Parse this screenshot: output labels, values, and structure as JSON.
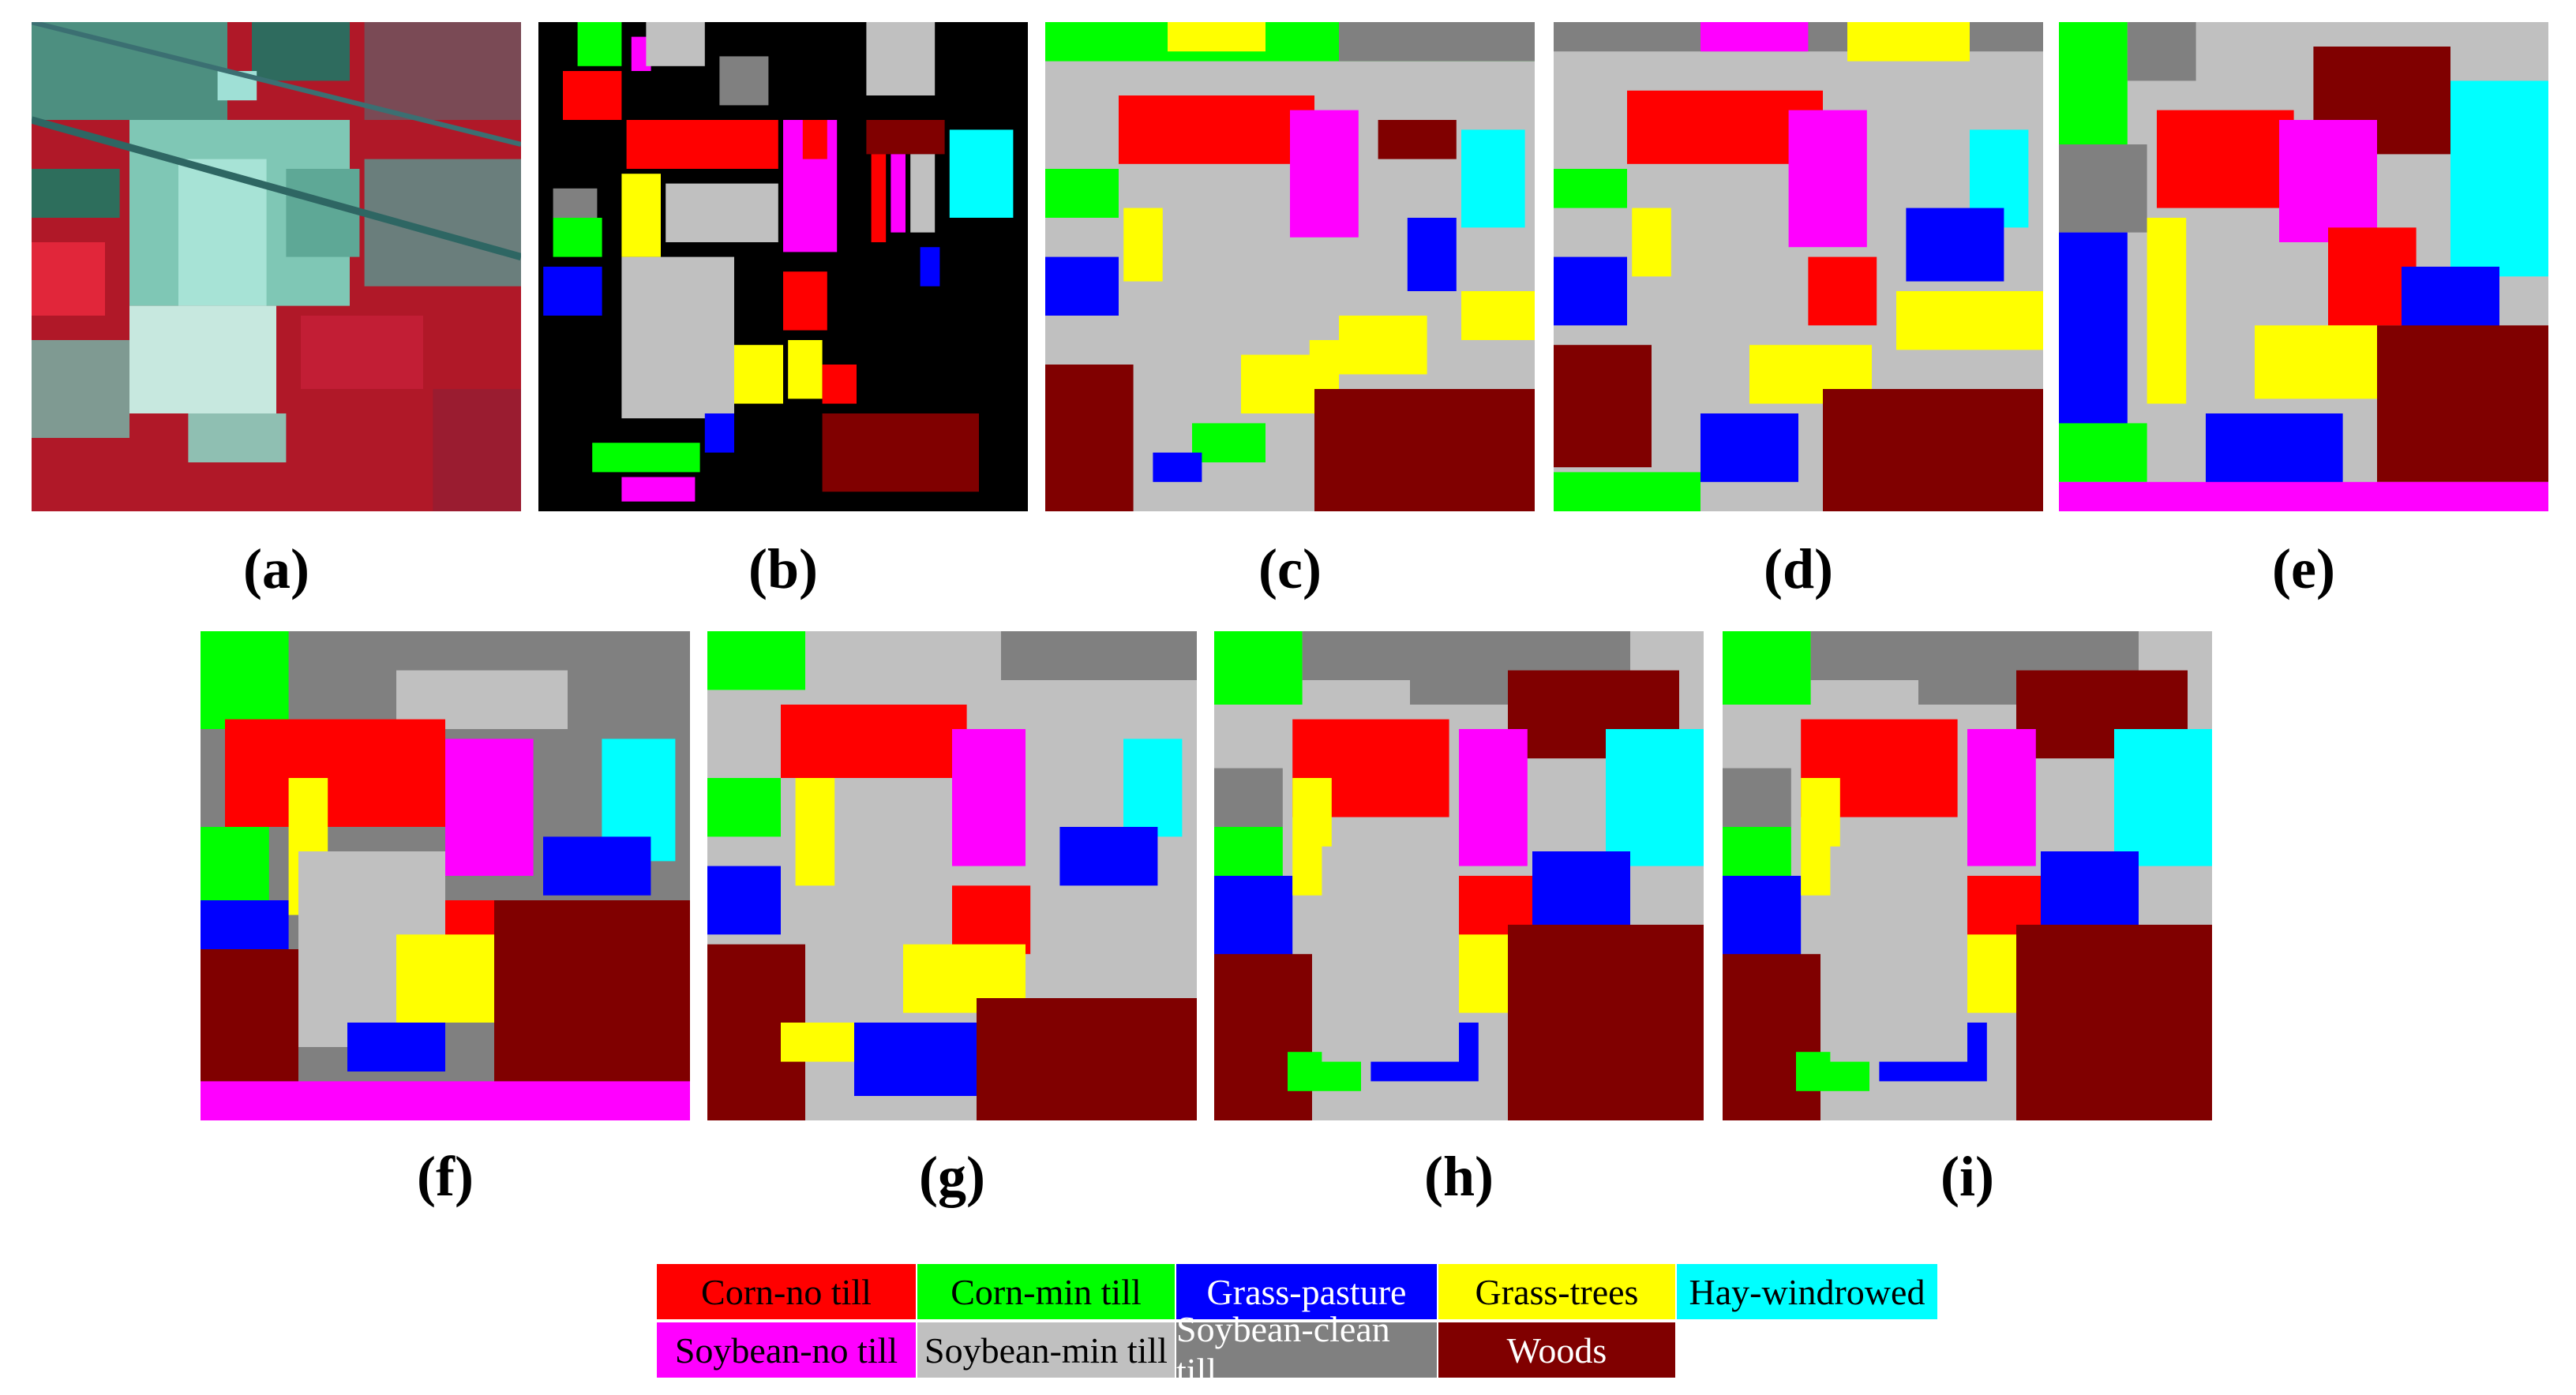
{
  "figure": {
    "panels": [
      {
        "id": "a",
        "label": "(a)",
        "kind": "false-color-composite"
      },
      {
        "id": "b",
        "label": "(b)",
        "kind": "ground-truth-map"
      },
      {
        "id": "c",
        "label": "(c)",
        "kind": "classification-map"
      },
      {
        "id": "d",
        "label": "(d)",
        "kind": "classification-map"
      },
      {
        "id": "e",
        "label": "(e)",
        "kind": "classification-map"
      },
      {
        "id": "f",
        "label": "(f)",
        "kind": "classification-map"
      },
      {
        "id": "g",
        "label": "(g)",
        "kind": "classification-map"
      },
      {
        "id": "h",
        "label": "(h)",
        "kind": "classification-map"
      },
      {
        "id": "i",
        "label": "(i)",
        "kind": "classification-map"
      }
    ]
  },
  "legend": {
    "items": [
      {
        "label": "Corn-no till",
        "color": "#ff0000",
        "text_color": "#000000"
      },
      {
        "label": "Corn-min till",
        "color": "#00ff00",
        "text_color": "#000000"
      },
      {
        "label": "Grass-pasture",
        "color": "#0000ff",
        "text_color": "#ffffff"
      },
      {
        "label": "Grass-trees",
        "color": "#ffff00",
        "text_color": "#000000"
      },
      {
        "label": "Hay-windrowed",
        "color": "#00ffff",
        "text_color": "#000000"
      },
      {
        "label": "Soybean-no till",
        "color": "#ff00ff",
        "text_color": "#000000"
      },
      {
        "label": "Soybean-min till",
        "color": "#c0c0c0",
        "text_color": "#000000"
      },
      {
        "label": "Soybean-clean till",
        "color": "#808080",
        "text_color": "#ffffff"
      },
      {
        "label": "Woods",
        "color": "#800000",
        "text_color": "#ffffff"
      }
    ]
  },
  "class_colors": {
    "corn_no_till": "#ff0000",
    "corn_min_till": "#00ff00",
    "grass_pasture": "#0000ff",
    "grass_trees": "#ffff00",
    "hay_windrowed": "#00ffff",
    "soybean_no_till": "#ff00ff",
    "soybean_min_till": "#c0c0c0",
    "soybean_clean_till": "#808080",
    "woods": "#800000",
    "background": "#000000"
  }
}
